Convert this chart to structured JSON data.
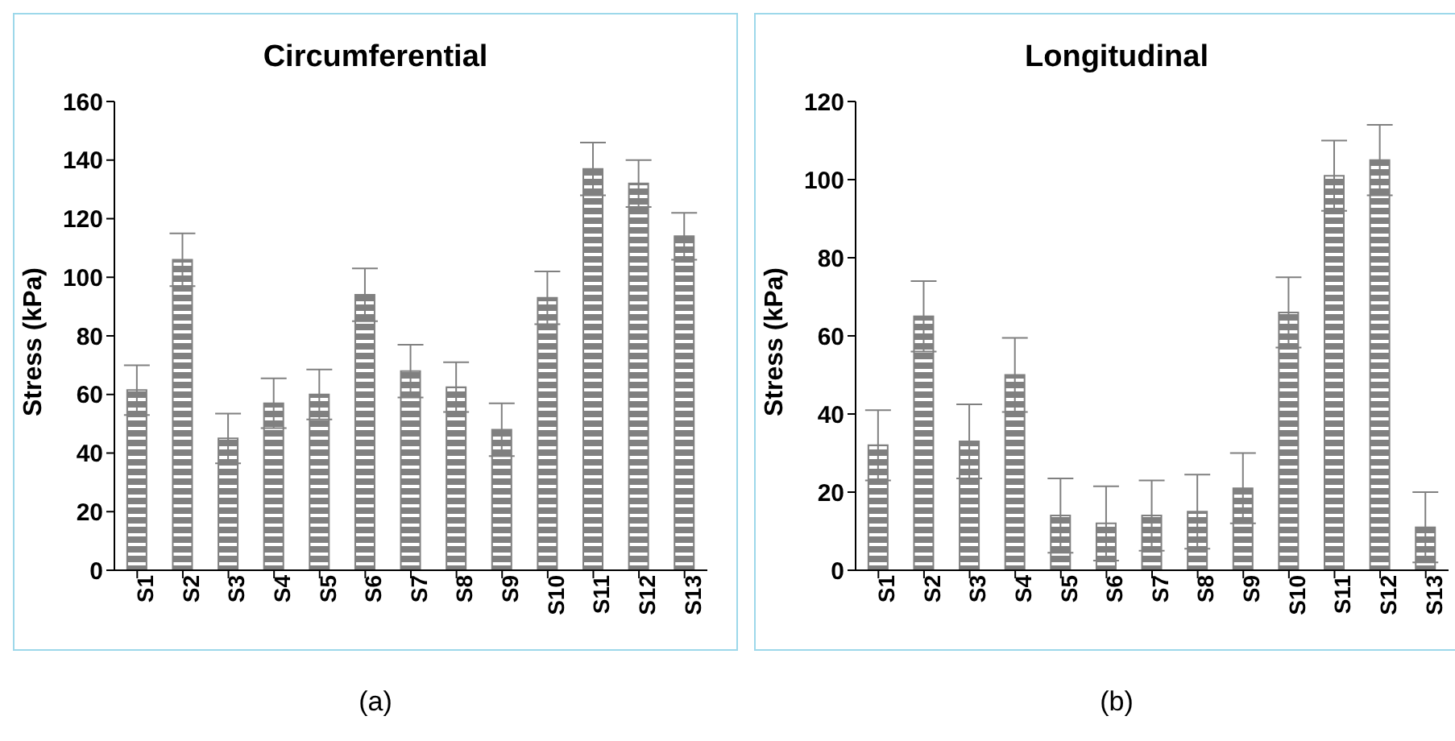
{
  "chart_data": [
    {
      "type": "bar",
      "title": "Circumferential",
      "ylabel": "Stress (kPa)",
      "categories": [
        "S1",
        "S2",
        "S3",
        "S4",
        "S5",
        "S6",
        "S7",
        "S8",
        "S9",
        "S10",
        "S11",
        "S12",
        "S13"
      ],
      "series": [
        {
          "color": "#808080",
          "values": [
            61.5,
            106,
            45,
            57,
            60,
            94,
            68,
            62.5,
            48,
            93,
            137,
            132,
            114
          ],
          "errors": [
            8.5,
            9,
            8.5,
            8.5,
            8.5,
            9,
            9,
            8.5,
            9,
            9,
            9,
            8,
            8
          ]
        }
      ],
      "ylim": [
        0,
        160
      ],
      "yticks": [
        0,
        20,
        40,
        60,
        80,
        100,
        120,
        140,
        160
      ],
      "grid": false,
      "legend": false,
      "annotations": [
        "(a)"
      ]
    },
    {
      "type": "bar",
      "title": "Longitudinal",
      "ylabel": "Stress (kPa)",
      "categories": [
        "S1",
        "S2",
        "S3",
        "S4",
        "S5",
        "S6",
        "S7",
        "S8",
        "S9",
        "S10",
        "S11",
        "S12",
        "S13"
      ],
      "series": [
        {
          "color": "#808080",
          "values": [
            32,
            65,
            33,
            50,
            14,
            12,
            14,
            15,
            21,
            66,
            101,
            105,
            11
          ],
          "errors": [
            9,
            9,
            9.5,
            9.5,
            9.5,
            9.5,
            9,
            9.5,
            9,
            9,
            9,
            9,
            9
          ]
        }
      ],
      "ylim": [
        0,
        120
      ],
      "yticks": [
        0,
        20,
        40,
        60,
        80,
        100,
        120
      ],
      "grid": false,
      "legend": false,
      "annotations": [
        "(b)"
      ]
    }
  ]
}
